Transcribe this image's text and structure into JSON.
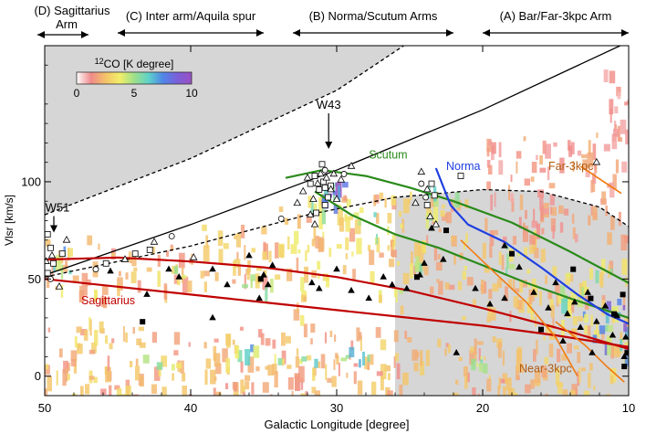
{
  "chart_data": {
    "type": "scatter",
    "title": "",
    "xlabel": "Galactic Longitude [degree]",
    "ylabel": "Vlsr [km/s]",
    "xlim": [
      50,
      10
    ],
    "ylim": [
      -10,
      170
    ],
    "xticks": [
      50,
      40,
      30,
      20,
      10
    ],
    "yticks": [
      0,
      50,
      100
    ],
    "colorbar": {
      "label": "12CO [K degree]",
      "min": 0,
      "max": 10,
      "ticks": [
        0,
        5,
        10
      ],
      "colors": [
        "#ffffff",
        "#f08a8a",
        "#f4c26a",
        "#f2ee6a",
        "#9fe08a",
        "#5fd2c8",
        "#4f86e8",
        "#7a5fd8",
        "#9a4fc4"
      ]
    },
    "regions": [
      {
        "label": "(D) Sagittarius Arm",
        "lines": [
          "(D) Sagittarius",
          "Arm"
        ],
        "lon_range": [
          50,
          47
        ]
      },
      {
        "label": "(C) Inter arm/Aquila spur",
        "lon_range": [
          45,
          35
        ]
      },
      {
        "label": "(B) Norma/Scutum Arms",
        "lon_range": [
          33,
          22
        ]
      },
      {
        "label": "(A) Bar/Far-3kpc Arm",
        "lon_range": [
          20,
          10
        ]
      }
    ],
    "annotations": [
      {
        "text": "W43",
        "lon": 30.8,
        "vlsr": 115
      },
      {
        "text": "W51",
        "lon": 49.5,
        "vlsr": 72
      }
    ],
    "colors": {
      "sagittarius": "#c00000",
      "scutum": "#2a8a1a",
      "norma": "#1f3fe0",
      "three_kpc": "#f07a10",
      "boundary": "#000000",
      "forbidden": "#d6d6d6",
      "arm_label_sagittarius": "#c00000",
      "arm_label_scutum": "#2a8a1a",
      "arm_label_norma": "#1f3fe0",
      "arm_label_3kpc": "#b05a10"
    },
    "series": [
      {
        "name": "Sagittarius",
        "kind": "arm",
        "color_key": "sagittarius",
        "x": [
          50,
          45,
          40,
          35,
          30,
          25,
          20,
          15,
          10
        ],
        "y": [
          60,
          61,
          59,
          56,
          51,
          44,
          35,
          25,
          14
        ]
      },
      {
        "name": "Sagittarius",
        "kind": "arm",
        "color_key": "sagittarius",
        "x": [
          50,
          45,
          40,
          35,
          30,
          25,
          20,
          15,
          10
        ],
        "y": [
          50,
          46,
          42,
          38,
          34,
          30,
          26,
          21,
          15
        ]
      },
      {
        "name": "Scutum",
        "kind": "arm",
        "color_key": "scutum",
        "x": [
          33.5,
          31,
          28,
          25,
          22,
          18,
          14,
          10
        ],
        "y": [
          102,
          106,
          103,
          97,
          90,
          79,
          64,
          48
        ]
      },
      {
        "name": "Scutum",
        "kind": "arm",
        "color_key": "scutum",
        "x": [
          31.5,
          29,
          26,
          23,
          20,
          17,
          14,
          10
        ],
        "y": [
          95,
          83,
          73,
          66,
          57,
          48,
          40,
          30
        ]
      },
      {
        "name": "Norma",
        "kind": "arm",
        "color_key": "norma",
        "x": [
          23.2,
          22.2,
          21,
          18.5,
          16,
          13.5,
          11.5,
          10
        ],
        "y": [
          107,
          88,
          78,
          69,
          56,
          42,
          32,
          27
        ]
      },
      {
        "name": "Far-3kpc",
        "kind": "arm",
        "color_key": "three_kpc",
        "x": [
          13.3,
          10.5
        ],
        "y": [
          108,
          94
        ]
      },
      {
        "name": "Near-3kpc",
        "kind": "arm",
        "color_key": "three_kpc",
        "x": [
          21.5,
          19,
          17,
          15,
          13.5
        ],
        "y": [
          70,
          52,
          38,
          20,
          0
        ]
      },
      {
        "name": "Near-3kpc",
        "kind": "arm",
        "color_key": "three_kpc",
        "x": [
          15,
          13,
          11.5,
          10.3
        ],
        "y": [
          28,
          16,
          5,
          -3
        ]
      }
    ],
    "arm_labels": [
      {
        "text": "Sagittarius",
        "lon": 47.5,
        "vlsr": 37,
        "color_key": "arm_label_sagittarius"
      },
      {
        "text": "Scutum",
        "lon": 27.8,
        "vlsr": 112,
        "color_key": "arm_label_scutum"
      },
      {
        "text": "Norma",
        "lon": 22.5,
        "vlsr": 106,
        "color_key": "arm_label_norma"
      },
      {
        "text": "Far-3kpc",
        "lon": 15.5,
        "vlsr": 106,
        "color_key": "arm_label_3kpc"
      },
      {
        "text": "Near-3kpc",
        "lon": 17.5,
        "vlsr": 2,
        "color_key": "arm_label_3kpc"
      }
    ],
    "boundaries": [
      {
        "style": "solid",
        "x": [
          50,
          40,
          30,
          20,
          10
        ],
        "y": [
          52,
          78,
          106,
          137,
          172
        ]
      },
      {
        "style": "dashed",
        "x": [
          50,
          40,
          30,
          25
        ],
        "y": [
          83,
          112,
          147,
          172
        ]
      },
      {
        "style": "dashed",
        "x": [
          50,
          40,
          32,
          26,
          20,
          16,
          12,
          10
        ],
        "y": [
          51,
          67,
          83,
          92,
          96,
          95,
          87,
          77
        ]
      }
    ],
    "markers": {
      "filled_triangle": [
        [
          45.5,
          54
        ],
        [
          43,
          42
        ],
        [
          41.5,
          55
        ],
        [
          40.8,
          51
        ],
        [
          38.5,
          55
        ],
        [
          37.5,
          47
        ],
        [
          36,
          62
        ],
        [
          35.3,
          40
        ],
        [
          35,
          52
        ],
        [
          34.7,
          47
        ],
        [
          34.4,
          57
        ],
        [
          31.7,
          48
        ],
        [
          31.2,
          45
        ],
        [
          30,
          55
        ],
        [
          29,
          44
        ],
        [
          27.8,
          40
        ],
        [
          26.8,
          51
        ],
        [
          26.2,
          47
        ],
        [
          25.2,
          45
        ],
        [
          24.3,
          52
        ],
        [
          23.5,
          76
        ],
        [
          22.7,
          60
        ],
        [
          20.5,
          45
        ],
        [
          19.5,
          37
        ],
        [
          18.5,
          40
        ],
        [
          17.5,
          56
        ],
        [
          16.5,
          43
        ],
        [
          15.5,
          35
        ],
        [
          15,
          48
        ],
        [
          14.2,
          32
        ],
        [
          13.7,
          38
        ],
        [
          13.3,
          25
        ],
        [
          12.8,
          43
        ],
        [
          12.2,
          28
        ],
        [
          11.6,
          36
        ],
        [
          11.1,
          21
        ],
        [
          10.8,
          31
        ],
        [
          10.3,
          10
        ],
        [
          10.2,
          20
        ],
        [
          18.5,
          67
        ],
        [
          21.8,
          12
        ],
        [
          24,
          58
        ],
        [
          38.5,
          30
        ],
        [
          14.5,
          18
        ],
        [
          12.5,
          12
        ]
      ],
      "filled_square": [
        [
          43.3,
          28
        ],
        [
          35.2,
          50
        ],
        [
          24.5,
          51
        ],
        [
          22.5,
          75
        ],
        [
          18,
          63
        ],
        [
          16,
          24
        ],
        [
          13.8,
          55
        ],
        [
          12.6,
          40
        ],
        [
          11,
          32
        ],
        [
          10.4,
          42
        ],
        [
          10.3,
          5
        ],
        [
          10.1,
          12
        ]
      ],
      "open_square": [
        [
          49.8,
          73
        ],
        [
          49.6,
          66
        ],
        [
          49.4,
          58
        ],
        [
          49.8,
          53
        ],
        [
          48.8,
          63
        ],
        [
          45.8,
          58
        ],
        [
          43.8,
          63
        ],
        [
          42.8,
          65
        ],
        [
          31.8,
          99
        ],
        [
          31.5,
          103
        ],
        [
          31.2,
          96
        ],
        [
          30.9,
          100
        ],
        [
          30.8,
          97
        ],
        [
          30.6,
          92
        ],
        [
          30.4,
          98
        ],
        [
          31,
          109
        ],
        [
          30.8,
          88
        ],
        [
          23.5,
          99
        ],
        [
          23.3,
          93
        ],
        [
          23.8,
          88
        ],
        [
          21.5,
          103
        ],
        [
          31.4,
          84
        ]
      ],
      "open_triangle": [
        [
          49.9,
          59
        ],
        [
          49.5,
          62
        ],
        [
          48.5,
          70
        ],
        [
          42.5,
          69
        ],
        [
          44.5,
          60
        ],
        [
          32.3,
          95
        ],
        [
          32,
          102
        ],
        [
          31.6,
          91
        ],
        [
          31.3,
          99
        ],
        [
          31.1,
          104
        ],
        [
          30.7,
          102
        ],
        [
          30.4,
          96
        ],
        [
          30.2,
          104
        ],
        [
          29.7,
          101
        ],
        [
          30,
          91
        ],
        [
          31.8,
          83
        ],
        [
          31.5,
          78
        ],
        [
          24.2,
          105
        ],
        [
          23.8,
          96
        ],
        [
          24.6,
          89
        ],
        [
          23.6,
          82
        ],
        [
          23.2,
          78
        ],
        [
          29,
          108
        ],
        [
          32.7,
          89
        ],
        [
          39.8,
          61
        ],
        [
          49,
          46
        ],
        [
          12.2,
          110
        ]
      ],
      "open_circle": [
        [
          49.6,
          50
        ],
        [
          41.3,
          72
        ],
        [
          33.8,
          81
        ],
        [
          30.8,
          106
        ],
        [
          29.5,
          104
        ],
        [
          24.2,
          99
        ],
        [
          46.5,
          55
        ],
        [
          23.9,
          92
        ]
      ]
    },
    "emission": [
      {
        "lon": [
          50,
          44
        ],
        "v": [
          -10,
          30
        ],
        "level": 2.5
      },
      {
        "lon": [
          44,
          36
        ],
        "v": [
          -10,
          25
        ],
        "level": 2.2
      },
      {
        "lon": [
          36,
          31
        ],
        "v": [
          -10,
          30
        ],
        "level": 2.4
      },
      {
        "lon": [
          31,
          25
        ],
        "v": [
          -10,
          25
        ],
        "level": 2.3
      },
      {
        "lon": [
          25,
          18
        ],
        "v": [
          -10,
          20
        ],
        "level": 2.2
      },
      {
        "lon": [
          18,
          10
        ],
        "v": [
          -10,
          20
        ],
        "level": 2.6
      },
      {
        "lon": [
          50,
          46
        ],
        "v": [
          40,
          72
        ],
        "level": 2.8
      },
      {
        "lon": [
          46,
          40
        ],
        "v": [
          45,
          68
        ],
        "level": 2.2
      },
      {
        "lon": [
          40,
          34
        ],
        "v": [
          48,
          80
        ],
        "level": 2.4
      },
      {
        "lon": [
          34,
          28
        ],
        "v": [
          50,
          95
        ],
        "level": 3.0
      },
      {
        "lon": [
          28,
          22
        ],
        "v": [
          45,
          95
        ],
        "level": 2.7
      },
      {
        "lon": [
          22,
          16
        ],
        "v": [
          30,
          75
        ],
        "level": 2.6
      },
      {
        "lon": [
          16,
          10
        ],
        "v": [
          15,
          60
        ],
        "level": 3.0
      },
      {
        "lon": [
          20,
          10
        ],
        "v": [
          70,
          125
        ],
        "level": 1.6
      },
      {
        "lon": [
          12,
          10
        ],
        "v": [
          120,
          160
        ],
        "level": 1.3
      },
      {
        "lon": [
          49.7,
          48.2
        ],
        "v": [
          50,
          70
        ],
        "level": 5.6
      },
      {
        "lon": [
          32,
          29.8
        ],
        "v": [
          85,
          108
        ],
        "level": 6.0
      },
      {
        "lon": [
          31.5,
          29.5
        ],
        "v": [
          92,
          103
        ],
        "level": 8.2
      },
      {
        "lon": [
          24.2,
          22.8
        ],
        "v": [
          82,
          100
        ],
        "level": 5.4
      },
      {
        "lon": [
          29,
          26.5
        ],
        "v": [
          70,
          85
        ],
        "level": 4.8
      },
      {
        "lon": [
          26,
          24
        ],
        "v": [
          55,
          70
        ],
        "level": 4.2
      },
      {
        "lon": [
          19,
          17.5
        ],
        "v": [
          55,
          72
        ],
        "level": 4.6
      },
      {
        "lon": [
          13.5,
          11.5
        ],
        "v": [
          15,
          35
        ],
        "level": 6.3
      },
      {
        "lon": [
          12,
          10.2
        ],
        "v": [
          20,
          40
        ],
        "level": 7.2
      },
      {
        "lon": [
          10.8,
          10
        ],
        "v": [
          0,
          45
        ],
        "level": 8.0
      },
      {
        "lon": [
          38,
          35.5
        ],
        "v": [
          8,
          16
        ],
        "level": 5.6
      },
      {
        "lon": [
          34.5,
          31.5
        ],
        "v": [
          8,
          15
        ],
        "level": 6.2
      },
      {
        "lon": [
          30,
          27.5
        ],
        "v": [
          7,
          16
        ],
        "level": 5.2
      },
      {
        "lon": [
          44,
          41
        ],
        "v": [
          4,
          12
        ],
        "level": 4.3
      },
      {
        "lon": [
          21,
          19
        ],
        "v": [
          4,
          10
        ],
        "level": 4.6
      },
      {
        "lon": [
          36.5,
          34.5
        ],
        "v": [
          45,
          52
        ],
        "level": 4.8
      },
      {
        "lon": [
          42.5,
          40.5
        ],
        "v": [
          50,
          58
        ],
        "level": 3.8
      },
      {
        "lon": [
          16,
          13.5
        ],
        "v": [
          38,
          50
        ],
        "level": 5.0
      },
      {
        "lon": [
          14,
          11
        ],
        "v": [
          45,
          58
        ],
        "level": 4.4
      },
      {
        "lon": [
          27.5,
          25.5
        ],
        "v": [
          35,
          45
        ],
        "level": 3.6
      },
      {
        "lon": [
          48,
          46
        ],
        "v": [
          20,
          30
        ],
        "level": 3.2
      },
      {
        "lon": [
          33,
          31
        ],
        "v": [
          30,
          45
        ],
        "level": 3.4
      },
      {
        "lon": [
          22.5,
          21
        ],
        "v": [
          86,
          95
        ],
        "level": 4.0
      }
    ]
  }
}
